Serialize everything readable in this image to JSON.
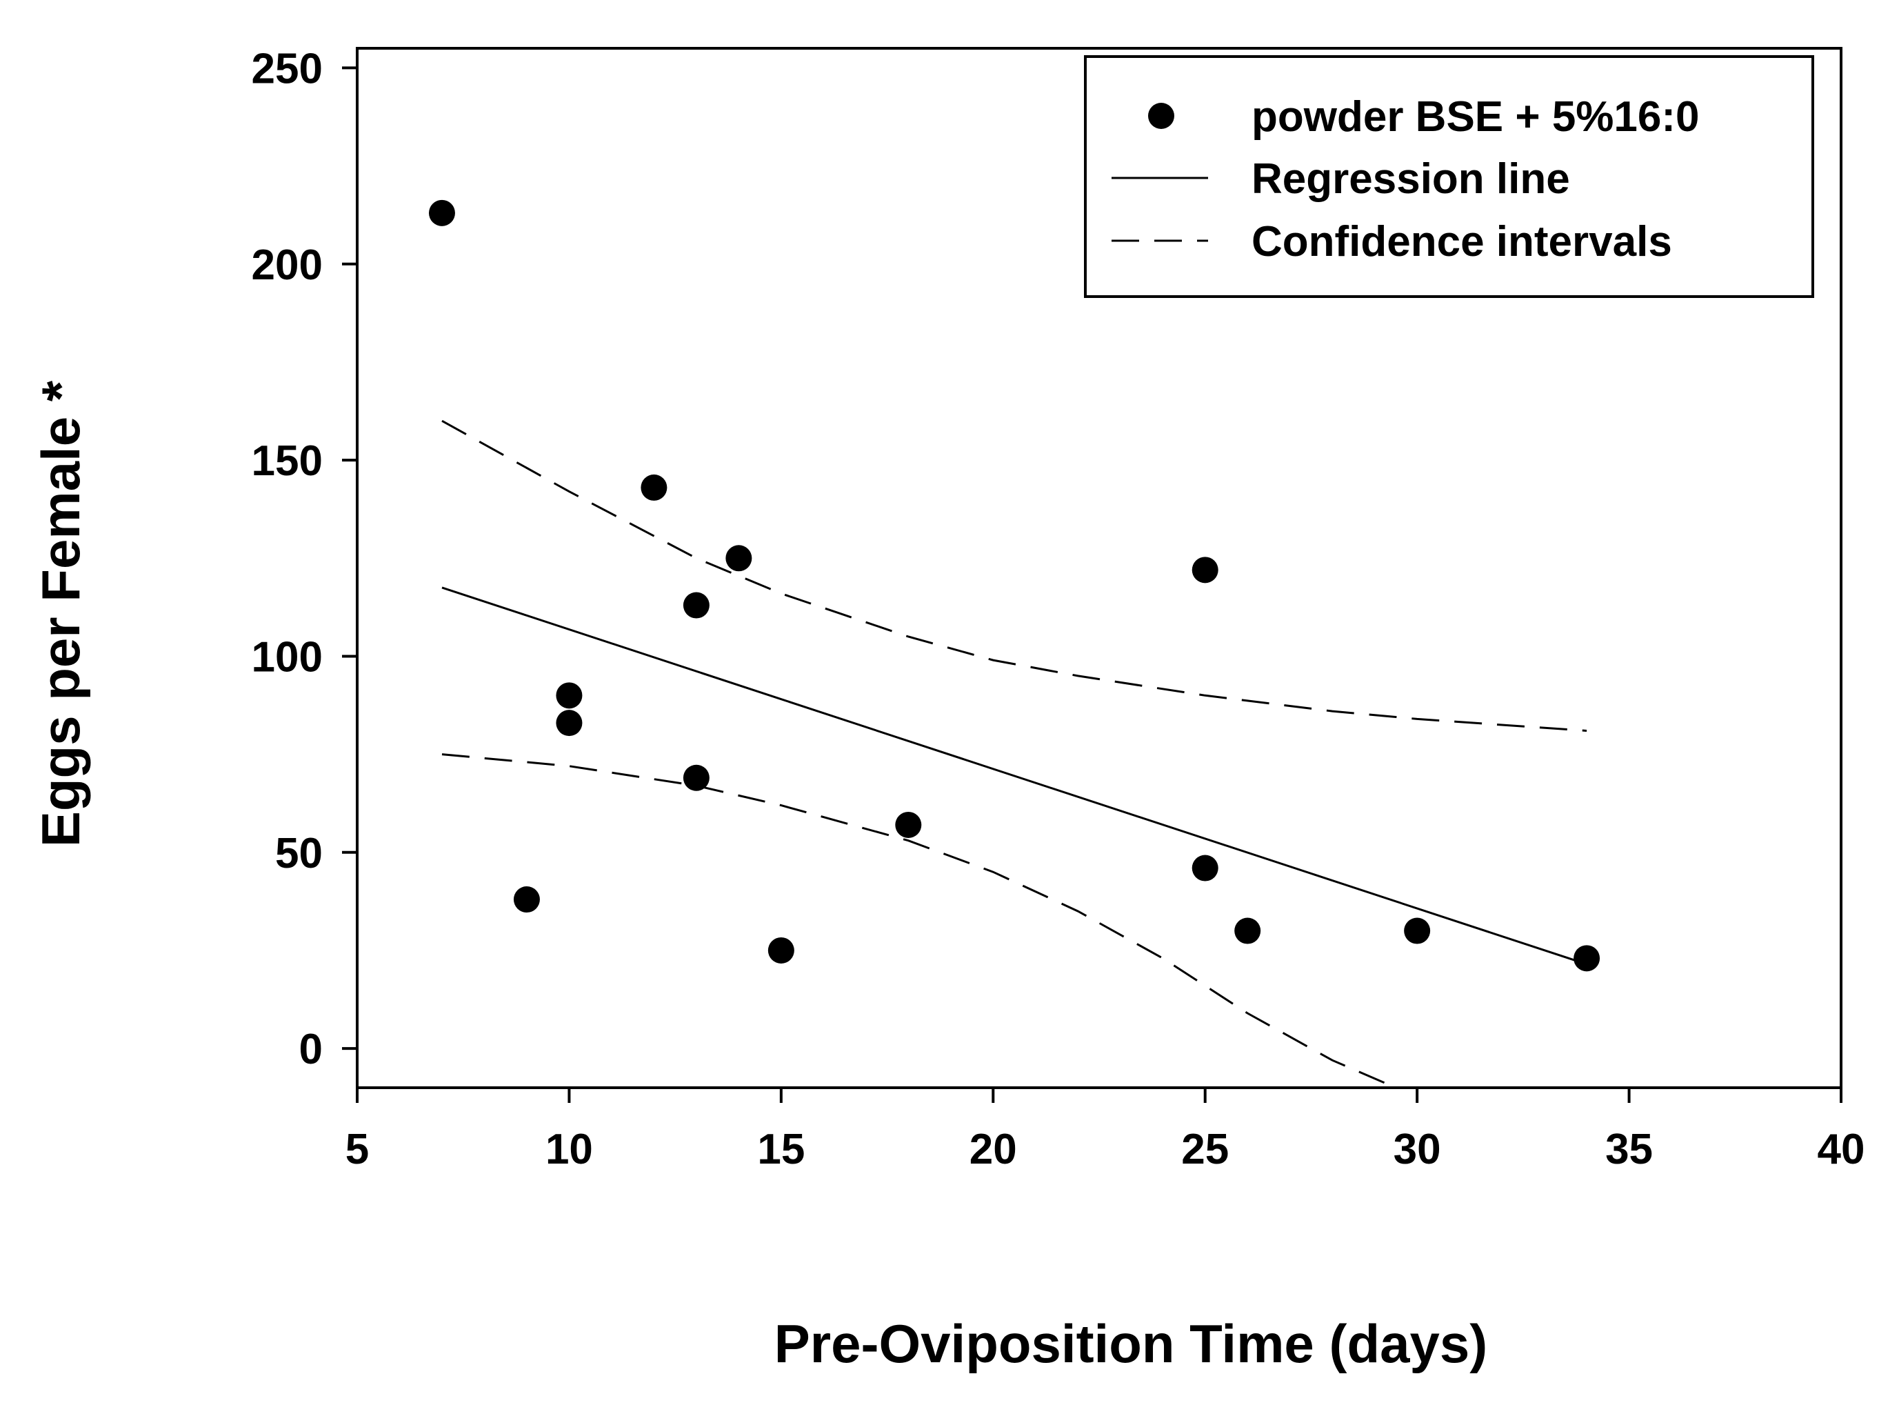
{
  "chart_data": {
    "type": "scatter",
    "xlabel": "Pre-Oviposition Time (days)",
    "ylabel": "Eggs per Female *",
    "xlim": [
      5,
      40
    ],
    "ylim": [
      -10,
      255
    ],
    "xticks": [
      5,
      10,
      15,
      20,
      25,
      30,
      35,
      40
    ],
    "yticks": [
      0,
      50,
      100,
      150,
      200,
      250
    ],
    "legend": {
      "position": "top-right",
      "entries": [
        {
          "label": "powder BSE + 5%16:0",
          "style": "marker"
        },
        {
          "label": "Regression line",
          "style": "solid"
        },
        {
          "label": "Confidence intervals",
          "style": "dashed"
        }
      ]
    },
    "series": [
      {
        "name": "powder BSE + 5%16:0",
        "kind": "points",
        "x": [
          7,
          9,
          10,
          10,
          12,
          13,
          13,
          14,
          15,
          18,
          25,
          25,
          26,
          30,
          34
        ],
        "y": [
          213,
          38,
          90,
          83,
          143,
          113,
          69,
          125,
          25,
          57,
          122,
          46,
          30,
          30,
          23
        ]
      },
      {
        "name": "Regression line",
        "kind": "line",
        "x": [
          7,
          34
        ],
        "y": [
          117.5,
          21.5
        ]
      },
      {
        "name": "Upper confidence interval",
        "kind": "dashed",
        "x": [
          7,
          10,
          13,
          15,
          18,
          20,
          22,
          25,
          28,
          30,
          34
        ],
        "y": [
          160,
          142,
          125,
          116,
          105,
          99,
          95,
          90,
          86,
          84,
          81
        ]
      },
      {
        "name": "Lower confidence interval",
        "kind": "dashed",
        "x": [
          7,
          10,
          13,
          15,
          18,
          20,
          22,
          24,
          26,
          28,
          29.5
        ],
        "y": [
          75,
          72,
          67,
          62,
          53,
          45,
          35,
          23,
          9,
          -3,
          -10
        ]
      }
    ]
  }
}
